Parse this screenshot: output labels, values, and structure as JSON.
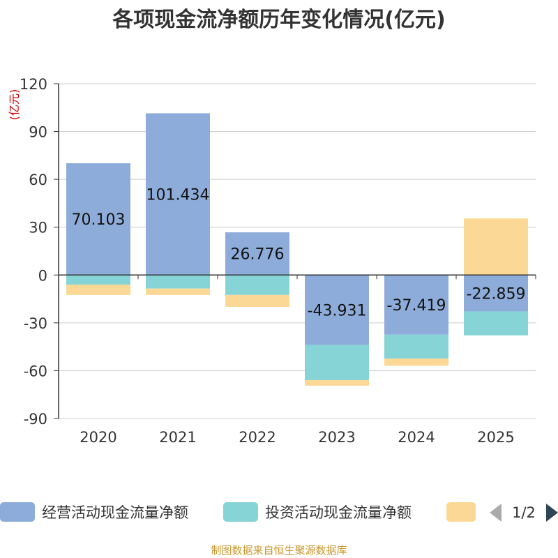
{
  "chart_data": {
    "type": "bar",
    "stacked": true,
    "title": "各项现金流净额历年变化情况(亿元)",
    "ylabel": "(亿元)",
    "xlabel": "",
    "ylim": [
      -90,
      120
    ],
    "yticks": [
      120,
      90,
      60,
      30,
      0,
      -30,
      -60,
      -90
    ],
    "grid": true,
    "categories": [
      "2020",
      "2021",
      "2022",
      "2023",
      "2024",
      "2025"
    ],
    "series": [
      {
        "name": "经营活动现金流量净额",
        "color": "#8eacd9",
        "values": [
          70.103,
          101.434,
          26.776,
          -43.931,
          -37.419,
          -22.859
        ],
        "labels": [
          "70.103",
          "101.434",
          "26.776",
          "-43.931",
          "-37.419",
          "-22.859"
        ]
      },
      {
        "name": "投资活动现金流量净额",
        "color": "#87d4d6",
        "values": [
          -6,
          -8.5,
          -12.5,
          -22,
          -15,
          -15
        ]
      },
      {
        "name": "",
        "color": "#fcd896",
        "values": [
          -6.5,
          -4,
          -7.5,
          -3.5,
          -4.5,
          35.5
        ]
      }
    ],
    "legend_position": "bottom"
  },
  "legend": {
    "pager": "1/2",
    "prev_icon": "triangle-left-icon",
    "next_icon": "triangle-right-icon"
  },
  "source": "制图数据来自恒生聚源数据库"
}
